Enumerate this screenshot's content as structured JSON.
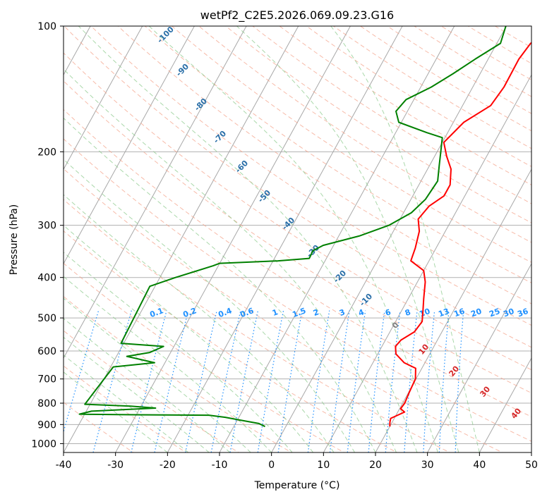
{
  "chart_data": {
    "type": "line",
    "title": "wetPf2_C2E5.2026.069.09.23.G16",
    "xlabel": "Temperature (°C)",
    "ylabel": "Pressure (hPa)",
    "xlim": [
      -40,
      50
    ],
    "ylim": [
      1050,
      100
    ],
    "y_scale": "log",
    "grid": true,
    "x_ticks": [
      -40,
      -30,
      -20,
      -10,
      0,
      10,
      20,
      30,
      40,
      50
    ],
    "y_ticks": [
      1000,
      900,
      800,
      700,
      600,
      500,
      400,
      300,
      200,
      100
    ],
    "colors": {
      "temperature": "#e50000",
      "dewpoint": "#008000",
      "dry_adiabats": "#f4a48c",
      "moist_adiabats": "#86c786",
      "mixing_ratio": "#1e90ff",
      "isotherms": "#808080"
    },
    "series": [
      {
        "color": "red",
        "points": [
          [
            20.0,
            910
          ],
          [
            19.6,
            890
          ],
          [
            19.3,
            870
          ],
          [
            21.3,
            840
          ],
          [
            20.2,
            825
          ],
          [
            20.4,
            800
          ],
          [
            20.1,
            750
          ],
          [
            19.9,
            700
          ],
          [
            18.8,
            660
          ],
          [
            16.0,
            640
          ],
          [
            13.5,
            610
          ],
          [
            12.6,
            585
          ],
          [
            13.0,
            565
          ],
          [
            14.7,
            540
          ],
          [
            15.1,
            510
          ],
          [
            14.1,
            480
          ],
          [
            13.0,
            450
          ],
          [
            11.5,
            410
          ],
          [
            10.0,
            385
          ],
          [
            6.5,
            365
          ],
          [
            6.0,
            340
          ],
          [
            5.0,
            310
          ],
          [
            3.5,
            290
          ],
          [
            4.2,
            270
          ],
          [
            6.0,
            255
          ],
          [
            6.0,
            240
          ],
          [
            4.5,
            220
          ],
          [
            2.3,
            205
          ],
          [
            0.3,
            190
          ],
          [
            2.0,
            170
          ],
          [
            5.4,
            155
          ],
          [
            6.0,
            140
          ],
          [
            5.9,
            120
          ],
          [
            6.5,
            110
          ],
          [
            9.3,
            100
          ]
        ]
      },
      {
        "color": "green",
        "points": [
          [
            -4.0,
            910
          ],
          [
            -5.5,
            895
          ],
          [
            -9.5,
            878
          ],
          [
            -12.6,
            865
          ],
          [
            -16.0,
            855
          ],
          [
            -30.0,
            853
          ],
          [
            -38.5,
            851
          ],
          [
            -41,
            850
          ],
          [
            -39.0,
            836
          ],
          [
            -27.0,
            822
          ],
          [
            -32.0,
            813
          ],
          [
            -41,
            805
          ],
          [
            -39.5,
            655
          ],
          [
            -32.0,
            640
          ],
          [
            -38.0,
            618
          ],
          [
            -34.0,
            605
          ],
          [
            -32.0,
            585
          ],
          [
            -40.5,
            575
          ],
          [
            -41,
            420
          ],
          [
            -37.0,
            400
          ],
          [
            -31.0,
            375
          ],
          [
            -30.0,
            370
          ],
          [
            -19.0,
            365
          ],
          [
            -13.3,
            360
          ],
          [
            -13.4,
            345
          ],
          [
            -12.0,
            335
          ],
          [
            -6.0,
            318
          ],
          [
            -1.5,
            300
          ],
          [
            1.5,
            280
          ],
          [
            2.8,
            260
          ],
          [
            3.2,
            235
          ],
          [
            1.8,
            215
          ],
          [
            0.7,
            200
          ],
          [
            -0.5,
            185
          ],
          [
            -4.0,
            180
          ],
          [
            -10.5,
            170
          ],
          [
            -12.2,
            160
          ],
          [
            -11.5,
            150
          ],
          [
            -8.0,
            140
          ],
          [
            -5.2,
            130
          ],
          [
            -2.5,
            120
          ],
          [
            0.7,
            110
          ],
          [
            -0.1,
            100
          ]
        ]
      }
    ],
    "dry_adiabat_labels": [
      "-100",
      "-90",
      "-80",
      "-70",
      "-60",
      "-50",
      "-40",
      "-30",
      "-20",
      "-10"
    ],
    "mixing_ratio_labels": [
      "0.1",
      "0.2",
      "0.4",
      "0.6",
      "1",
      "1.5",
      "2",
      "3",
      "4",
      "6",
      "8",
      "10",
      "13",
      "16",
      "20",
      "25",
      "30",
      "36"
    ],
    "moist_adiabat_labels": [
      "0",
      "10",
      "20",
      "30",
      "40"
    ]
  }
}
